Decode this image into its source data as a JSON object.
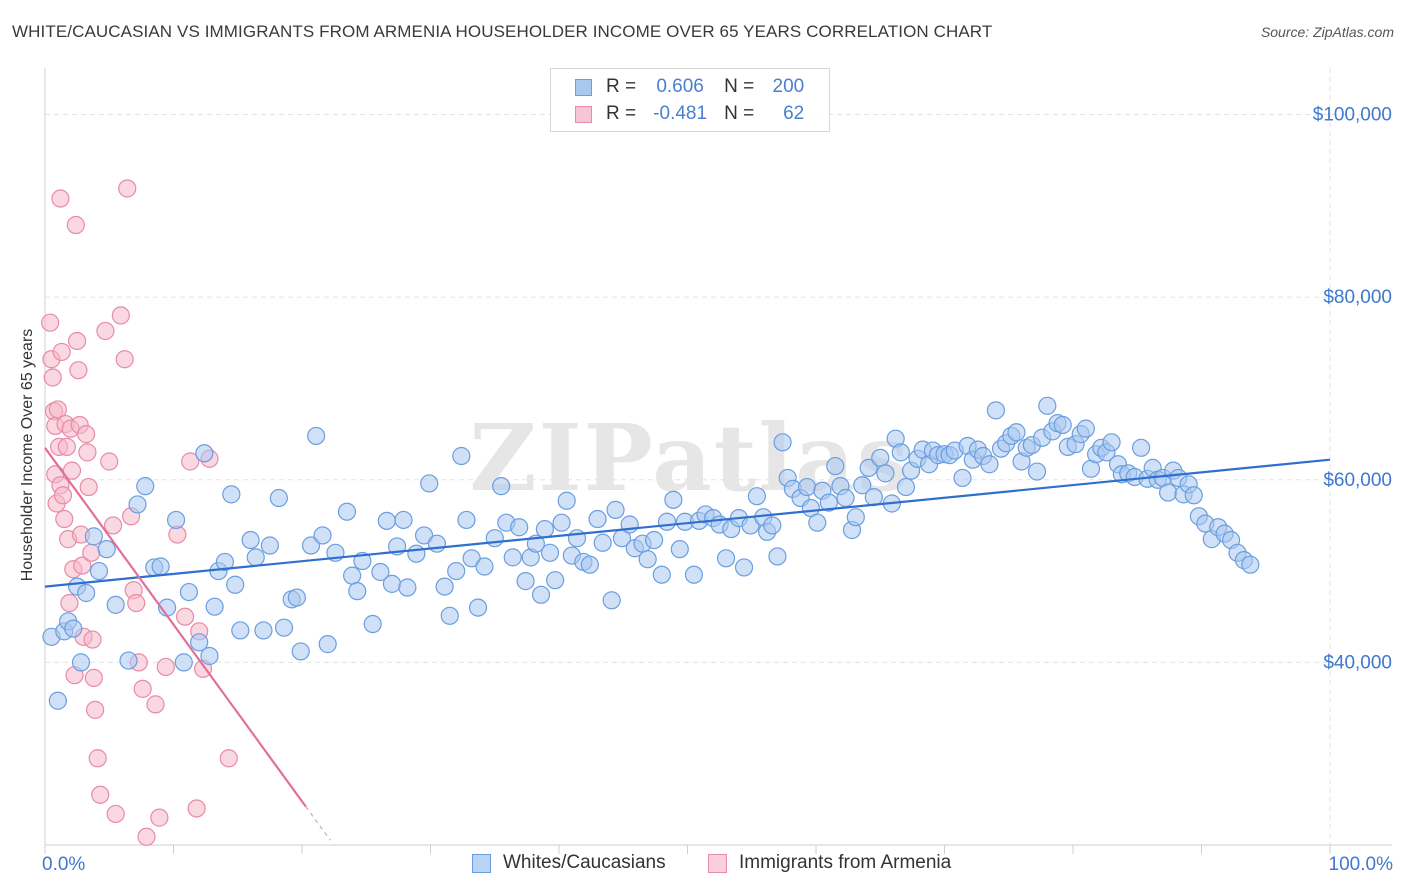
{
  "title": "WHITE/CAUCASIAN VS IMMIGRANTS FROM ARMENIA HOUSEHOLDER INCOME OVER 65 YEARS CORRELATION CHART",
  "source": "Source: ZipAtlas.com",
  "watermark": "ZIPatlas",
  "colors": {
    "blue_fill": "#a9c8f0",
    "blue_stroke": "#6a9ee0",
    "blue_line": "#2f6fce",
    "pink_fill": "#f5b8cb",
    "pink_stroke": "#e98aa8",
    "pink_line": "#e0709a",
    "tick_label": "#3f78cf",
    "grid": "#e3e3e3"
  },
  "legend": {
    "rows": [
      {
        "r_label": "R =",
        "r_value": "0.606",
        "n_label": "N =",
        "n_value": "200"
      },
      {
        "r_label": "R =",
        "r_value": "-0.481",
        "n_label": "N =",
        "n_value": "62"
      }
    ]
  },
  "bottom_legend": [
    "Whites/Caucasians",
    "Immigrants from Armenia"
  ],
  "chart_data": {
    "type": "scatter",
    "title": "WHITE/CAUCASIAN VS IMMIGRANTS FROM ARMENIA HOUSEHOLDER INCOME OVER 65 YEARS CORRELATION CHART",
    "xlabel": "",
    "ylabel": "Householder Income Over 65 years",
    "xlim": [
      0,
      100
    ],
    "ylim": [
      20000,
      104000
    ],
    "x_tick_labels": [
      "0.0%",
      "100.0%"
    ],
    "y_ticks": [
      40000,
      60000,
      80000,
      100000
    ],
    "y_tick_labels": [
      "$40,000",
      "$60,000",
      "$80,000",
      "$100,000"
    ],
    "grid": true,
    "legend_position": "top-center",
    "series": [
      {
        "name": "Whites/Caucasians",
        "r": 0.606,
        "n": 200,
        "trend": [
          [
            0,
            48300
          ],
          [
            100,
            62200
          ]
        ],
        "points": [
          [
            0.5,
            42800
          ],
          [
            1.0,
            35800
          ],
          [
            1.5,
            43400
          ],
          [
            1.8,
            44500
          ],
          [
            2.2,
            43700
          ],
          [
            2.5,
            48300
          ],
          [
            2.8,
            40000
          ],
          [
            3.2,
            47600
          ],
          [
            3.8,
            53800
          ],
          [
            4.2,
            50000
          ],
          [
            4.8,
            52400
          ],
          [
            5.5,
            46300
          ],
          [
            6.5,
            40200
          ],
          [
            7.2,
            57300
          ],
          [
            7.8,
            59300
          ],
          [
            8.5,
            50400
          ],
          [
            9.0,
            50500
          ],
          [
            9.5,
            46000
          ],
          [
            10.2,
            55600
          ],
          [
            10.8,
            40000
          ],
          [
            11.2,
            47700
          ],
          [
            12.0,
            42200
          ],
          [
            12.4,
            62900
          ],
          [
            12.8,
            40700
          ],
          [
            13.2,
            46100
          ],
          [
            13.5,
            50000
          ],
          [
            14.0,
            51000
          ],
          [
            14.5,
            58400
          ],
          [
            14.8,
            48500
          ],
          [
            15.2,
            43500
          ],
          [
            16.0,
            53400
          ],
          [
            16.4,
            51500
          ],
          [
            17.0,
            43500
          ],
          [
            17.5,
            52800
          ],
          [
            18.2,
            58000
          ],
          [
            18.6,
            43800
          ],
          [
            19.2,
            46900
          ],
          [
            19.6,
            47100
          ],
          [
            19.9,
            41200
          ],
          [
            20.7,
            52800
          ],
          [
            21.1,
            64800
          ],
          [
            21.6,
            53900
          ],
          [
            22.0,
            42000
          ],
          [
            22.6,
            52000
          ],
          [
            23.5,
            56500
          ],
          [
            23.9,
            49500
          ],
          [
            24.3,
            47800
          ],
          [
            24.7,
            51100
          ],
          [
            25.5,
            44200
          ],
          [
            26.1,
            49900
          ],
          [
            26.6,
            55500
          ],
          [
            27.0,
            48600
          ],
          [
            27.4,
            52700
          ],
          [
            27.9,
            55600
          ],
          [
            28.2,
            48200
          ],
          [
            28.9,
            51900
          ],
          [
            29.5,
            53900
          ],
          [
            29.9,
            59600
          ],
          [
            30.5,
            53000
          ],
          [
            31.1,
            48300
          ],
          [
            31.5,
            45100
          ],
          [
            32.0,
            50000
          ],
          [
            32.4,
            62600
          ],
          [
            32.8,
            55600
          ],
          [
            33.2,
            51400
          ],
          [
            33.7,
            46000
          ],
          [
            34.2,
            50500
          ],
          [
            35.0,
            53600
          ],
          [
            35.5,
            59300
          ],
          [
            35.9,
            55300
          ],
          [
            36.4,
            51500
          ],
          [
            36.9,
            54800
          ],
          [
            37.4,
            48900
          ],
          [
            37.8,
            51500
          ],
          [
            38.2,
            53000
          ],
          [
            38.6,
            47400
          ],
          [
            38.9,
            54600
          ],
          [
            39.3,
            52000
          ],
          [
            39.7,
            49000
          ],
          [
            40.2,
            55300
          ],
          [
            40.6,
            57700
          ],
          [
            41.0,
            51700
          ],
          [
            41.4,
            53600
          ],
          [
            41.9,
            51000
          ],
          [
            42.4,
            50700
          ],
          [
            43.0,
            55700
          ],
          [
            43.4,
            53100
          ],
          [
            44.1,
            46800
          ],
          [
            44.4,
            56700
          ],
          [
            44.9,
            53600
          ],
          [
            45.5,
            55100
          ],
          [
            45.9,
            52500
          ],
          [
            46.5,
            53000
          ],
          [
            46.9,
            51300
          ],
          [
            47.4,
            53400
          ],
          [
            48.0,
            49600
          ],
          [
            48.4,
            55400
          ],
          [
            48.9,
            57800
          ],
          [
            49.4,
            52400
          ],
          [
            49.8,
            55400
          ],
          [
            50.5,
            49600
          ],
          [
            50.9,
            55500
          ],
          [
            51.4,
            56200
          ],
          [
            52.0,
            55800
          ],
          [
            52.5,
            55100
          ],
          [
            53.0,
            51400
          ],
          [
            53.4,
            54600
          ],
          [
            54.0,
            55800
          ],
          [
            54.4,
            50400
          ],
          [
            54.9,
            55000
          ],
          [
            55.4,
            58200
          ],
          [
            55.9,
            55900
          ],
          [
            56.2,
            54300
          ],
          [
            56.6,
            55000
          ],
          [
            57.0,
            51600
          ],
          [
            57.4,
            64100
          ],
          [
            57.8,
            60200
          ],
          [
            58.2,
            59000
          ],
          [
            58.8,
            58000
          ],
          [
            59.3,
            59200
          ],
          [
            59.6,
            56900
          ],
          [
            60.1,
            55300
          ],
          [
            60.5,
            58800
          ],
          [
            61.0,
            57500
          ],
          [
            61.5,
            61500
          ],
          [
            61.9,
            59300
          ],
          [
            62.3,
            58000
          ],
          [
            62.8,
            54500
          ],
          [
            63.1,
            55900
          ],
          [
            63.6,
            59400
          ],
          [
            64.1,
            61300
          ],
          [
            64.5,
            58100
          ],
          [
            65.0,
            62400
          ],
          [
            65.4,
            60700
          ],
          [
            65.9,
            57400
          ],
          [
            66.2,
            64500
          ],
          [
            66.6,
            63000
          ],
          [
            67.0,
            59200
          ],
          [
            67.4,
            61000
          ],
          [
            67.9,
            62300
          ],
          [
            68.3,
            63300
          ],
          [
            68.8,
            61700
          ],
          [
            69.1,
            63200
          ],
          [
            69.5,
            62700
          ],
          [
            70.0,
            62800
          ],
          [
            70.4,
            62700
          ],
          [
            70.8,
            63200
          ],
          [
            71.4,
            60200
          ],
          [
            71.8,
            63700
          ],
          [
            72.2,
            62200
          ],
          [
            72.6,
            63300
          ],
          [
            73.0,
            62600
          ],
          [
            73.5,
            61700
          ],
          [
            74.0,
            67600
          ],
          [
            74.4,
            63400
          ],
          [
            74.8,
            64000
          ],
          [
            75.2,
            64800
          ],
          [
            75.6,
            65200
          ],
          [
            76.0,
            62000
          ],
          [
            76.4,
            63500
          ],
          [
            76.8,
            63800
          ],
          [
            77.2,
            60900
          ],
          [
            77.6,
            64600
          ],
          [
            78.0,
            68100
          ],
          [
            78.4,
            65300
          ],
          [
            78.8,
            66200
          ],
          [
            79.2,
            66000
          ],
          [
            79.6,
            63600
          ],
          [
            80.2,
            63900
          ],
          [
            80.6,
            65000
          ],
          [
            81.0,
            65600
          ],
          [
            81.4,
            61200
          ],
          [
            81.8,
            62800
          ],
          [
            82.2,
            63500
          ],
          [
            82.6,
            63000
          ],
          [
            83.0,
            64100
          ],
          [
            83.5,
            61700
          ],
          [
            83.8,
            60600
          ],
          [
            84.3,
            60700
          ],
          [
            84.8,
            60300
          ],
          [
            85.3,
            63500
          ],
          [
            85.8,
            60100
          ],
          [
            86.2,
            61300
          ],
          [
            86.6,
            60000
          ],
          [
            87.0,
            60200
          ],
          [
            87.4,
            58600
          ],
          [
            87.8,
            61000
          ],
          [
            88.2,
            60200
          ],
          [
            88.6,
            58400
          ],
          [
            89.0,
            59500
          ],
          [
            89.4,
            58300
          ],
          [
            89.8,
            56000
          ],
          [
            90.3,
            55200
          ],
          [
            90.8,
            53500
          ],
          [
            91.3,
            54800
          ],
          [
            91.8,
            54100
          ],
          [
            92.3,
            53400
          ],
          [
            92.8,
            52000
          ],
          [
            93.3,
            51200
          ],
          [
            93.8,
            50700
          ]
        ]
      },
      {
        "name": "Immigrants from Armenia",
        "r": -0.481,
        "n": 62,
        "trend": [
          [
            0,
            63500
          ],
          [
            20.3,
            24200
          ]
        ],
        "points": [
          [
            0.4,
            77200
          ],
          [
            0.5,
            73200
          ],
          [
            0.6,
            71200
          ],
          [
            0.7,
            67500
          ],
          [
            0.8,
            65900
          ],
          [
            0.8,
            60600
          ],
          [
            0.9,
            57400
          ],
          [
            1.0,
            67700
          ],
          [
            1.1,
            63600
          ],
          [
            1.2,
            59400
          ],
          [
            1.2,
            90800
          ],
          [
            1.3,
            74000
          ],
          [
            1.4,
            58300
          ],
          [
            1.5,
            55700
          ],
          [
            1.6,
            66100
          ],
          [
            1.7,
            63600
          ],
          [
            1.8,
            53500
          ],
          [
            1.9,
            46500
          ],
          [
            2.0,
            65600
          ],
          [
            2.1,
            61000
          ],
          [
            2.2,
            50200
          ],
          [
            2.3,
            38600
          ],
          [
            2.4,
            87900
          ],
          [
            2.5,
            75200
          ],
          [
            2.6,
            72000
          ],
          [
            2.7,
            66000
          ],
          [
            2.8,
            54000
          ],
          [
            2.9,
            50600
          ],
          [
            3.0,
            42800
          ],
          [
            3.2,
            65000
          ],
          [
            3.3,
            63000
          ],
          [
            3.4,
            59200
          ],
          [
            3.6,
            52000
          ],
          [
            3.7,
            42500
          ],
          [
            3.8,
            38300
          ],
          [
            3.9,
            34800
          ],
          [
            4.1,
            29500
          ],
          [
            4.3,
            25500
          ],
          [
            4.7,
            76300
          ],
          [
            5.0,
            62000
          ],
          [
            5.3,
            55000
          ],
          [
            5.5,
            23400
          ],
          [
            5.9,
            78000
          ],
          [
            6.2,
            73200
          ],
          [
            6.4,
            91900
          ],
          [
            6.7,
            56000
          ],
          [
            6.9,
            47900
          ],
          [
            7.1,
            46500
          ],
          [
            7.3,
            40000
          ],
          [
            7.6,
            37100
          ],
          [
            7.9,
            20900
          ],
          [
            8.6,
            35400
          ],
          [
            8.9,
            23000
          ],
          [
            9.4,
            39500
          ],
          [
            10.3,
            54000
          ],
          [
            10.9,
            45000
          ],
          [
            11.3,
            62000
          ],
          [
            11.8,
            24000
          ],
          [
            12.0,
            43400
          ],
          [
            12.3,
            39300
          ],
          [
            12.8,
            62300
          ],
          [
            14.3,
            29500
          ]
        ]
      }
    ]
  }
}
